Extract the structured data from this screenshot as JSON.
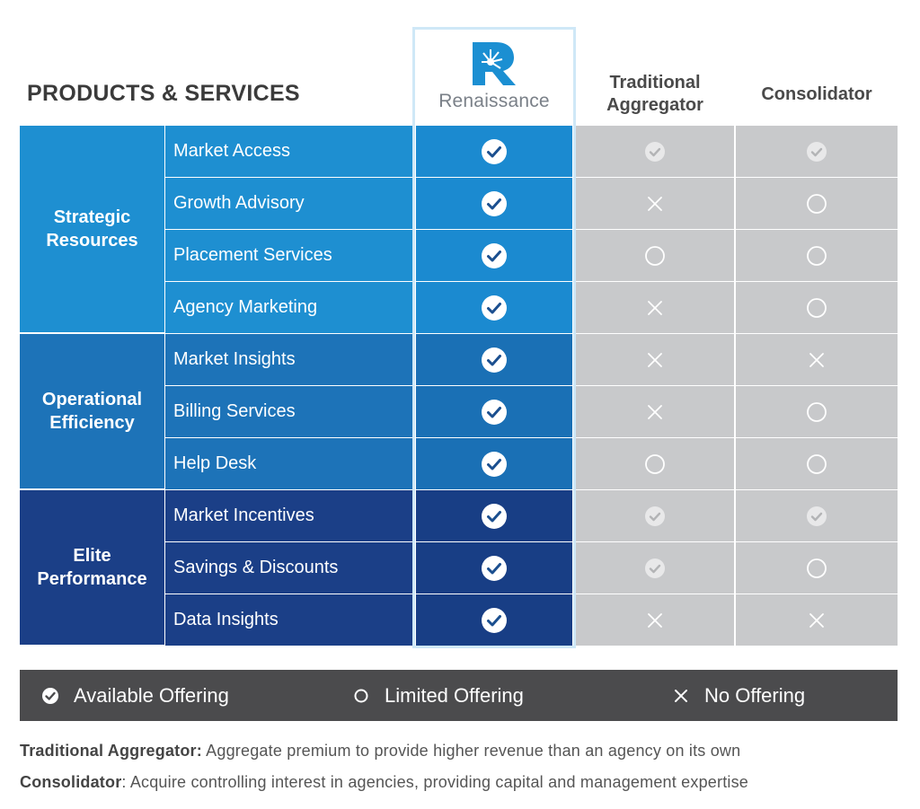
{
  "title": "PRODUCTS & SERVICES",
  "brand": {
    "name": "Renaissance",
    "logo_icon": "renaissance-r-logo-icon"
  },
  "columns": {
    "traditional": "Traditional Aggregator",
    "consolidator": "Consolidator"
  },
  "groups": [
    {
      "label": "Strategic Resources",
      "color": "#1e8fd1"
    },
    {
      "label": "Operational Efficiency",
      "color": "#1d73b8"
    },
    {
      "label": "Elite Performance",
      "color": "#1b3f87"
    }
  ],
  "rows": [
    {
      "service": "Market Access",
      "renaissance": "available",
      "traditional": "available",
      "consolidator": "available"
    },
    {
      "service": "Growth Advisory",
      "renaissance": "available",
      "traditional": "none",
      "consolidator": "limited"
    },
    {
      "service": "Placement Services",
      "renaissance": "available",
      "traditional": "limited",
      "consolidator": "limited"
    },
    {
      "service": "Agency Marketing",
      "renaissance": "available",
      "traditional": "none",
      "consolidator": "limited"
    },
    {
      "service": "Market Insights",
      "renaissance": "available",
      "traditional": "none",
      "consolidator": "none"
    },
    {
      "service": "Billing Services",
      "renaissance": "available",
      "traditional": "none",
      "consolidator": "limited"
    },
    {
      "service": "Help Desk",
      "renaissance": "available",
      "traditional": "limited",
      "consolidator": "limited"
    },
    {
      "service": "Market Incentives",
      "renaissance": "available",
      "traditional": "available",
      "consolidator": "available"
    },
    {
      "service": "Savings & Discounts",
      "renaissance": "available",
      "traditional": "available",
      "consolidator": "limited"
    },
    {
      "service": "Data Insights",
      "renaissance": "available",
      "traditional": "none",
      "consolidator": "none"
    }
  ],
  "legend": {
    "available": "Available Offering",
    "limited": "Limited Offering",
    "none": "No Offering"
  },
  "notes": {
    "traditional_label": "Traditional Aggregator:",
    "traditional_text": " Aggregate premium to provide higher revenue than an agency on its own",
    "consolidator_label": "Consolidator",
    "consolidator_text": ": Acquire controlling interest in agencies, providing capital and management expertise"
  },
  "colors": {
    "legend_bg": "#4b4b4d",
    "competitor_bg": "#c8c9cb",
    "brand_border": "#cfe8f7"
  }
}
